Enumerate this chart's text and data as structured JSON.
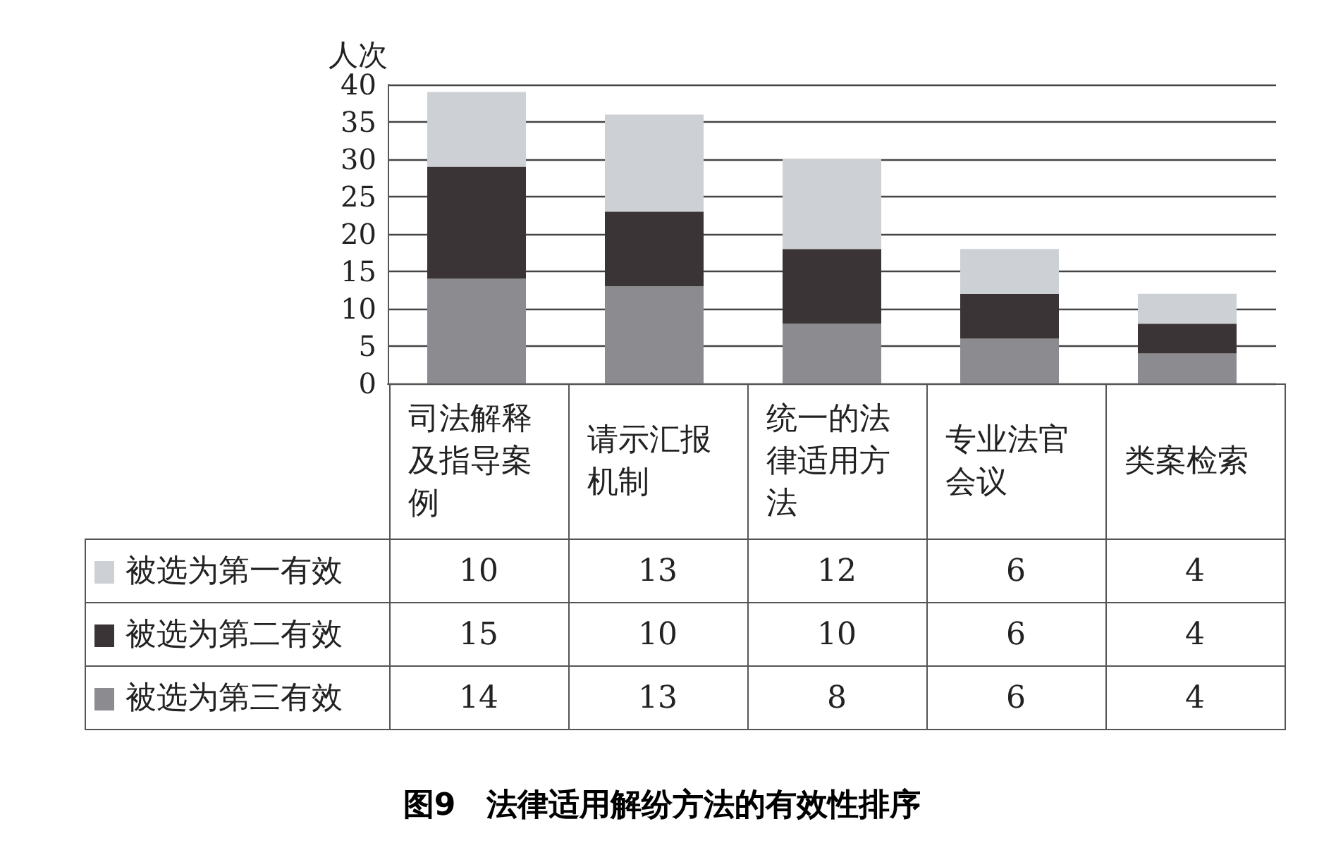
{
  "chart_data": {
    "type": "bar",
    "title": "图9　法律适用解纷方法的有效性排序",
    "ylabel": "人次",
    "categories": [
      "司法解释及指导案例",
      "请示汇报机制",
      "统一的法律适用方法",
      "专业法官会议",
      "类案检索"
    ],
    "series": [
      {
        "name": "被选为第三有效",
        "color": "#8c8c90",
        "values": [
          14,
          13,
          8,
          6,
          4
        ]
      },
      {
        "name": "被选为第二有效",
        "color": "#3b3437",
        "values": [
          15,
          10,
          10,
          6,
          4
        ]
      },
      {
        "name": "被选为第一有效",
        "color": "#cdd0d5",
        "values": [
          10,
          13,
          12,
          6,
          4
        ]
      }
    ],
    "stacked": true,
    "ylim": [
      0,
      40
    ],
    "yticks": [
      0,
      5,
      10,
      15,
      20,
      25,
      30,
      35,
      40
    ],
    "grid": "y",
    "legend": "bottom left",
    "data_labels": true
  }
}
